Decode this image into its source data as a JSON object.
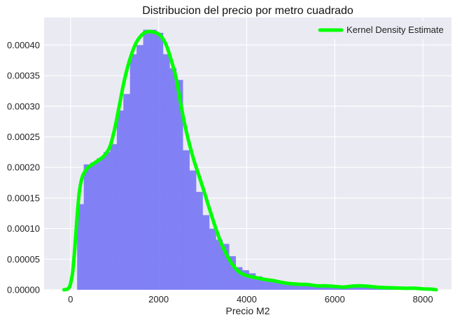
{
  "chart_data": {
    "type": "histogram",
    "title": "Distribucion del precio por metro cuadrado",
    "xlabel": "Precio M2",
    "ylabel": "",
    "xlim": [
      -600,
      8650
    ],
    "ylim": [
      0,
      0.000445
    ],
    "x_ticks": [
      0,
      2000,
      4000,
      6000,
      8000
    ],
    "x_tick_labels": [
      "0",
      "2000",
      "4000",
      "6000",
      "8000"
    ],
    "y_ticks": [
      0,
      5e-05,
      0.0001,
      0.00015,
      0.0002,
      0.00025,
      0.0003,
      0.00035,
      0.0004
    ],
    "y_tick_labels": [
      "0.00000",
      "0.00005",
      "0.00010",
      "0.00015",
      "0.00020",
      "0.00025",
      "0.00030",
      "0.00035",
      "0.00040"
    ],
    "grid": true,
    "legend_position": "top-right",
    "histogram": {
      "color": "#7b7bf4",
      "bin_edges": [
        150,
        300,
        450,
        600,
        750,
        900,
        1050,
        1200,
        1350,
        1500,
        1650,
        1800,
        1950,
        2100,
        2250,
        2400,
        2550,
        2700,
        2850,
        3000,
        3150,
        3300,
        3450,
        3600,
        3750,
        3900,
        4050,
        4200,
        4350,
        4500,
        4650,
        4800,
        4950,
        5100,
        5250,
        5400,
        5550,
        5700,
        5850,
        6000,
        6150,
        6300,
        6450,
        6600,
        6750,
        6900,
        7050,
        7200,
        7350,
        7500,
        7650,
        7800,
        7950,
        8100,
        8250
      ],
      "densities": [
        0.00014,
        0.000205,
        0.000208,
        0.000215,
        0.000225,
        0.000238,
        0.000293,
        0.00032,
        0.000385,
        0.0004,
        0.000425,
        0.000425,
        0.00042,
        0.000385,
        0.000362,
        0.000343,
        0.000228,
        0.000195,
        0.00016,
        0.000122,
        0.0001,
        8.2e-05,
        7.5e-05,
        5.5e-05,
        3.7e-05,
        3.2e-05,
        2.7e-05,
        2.2e-05,
        1.9e-05,
        1.6e-05,
        1.4e-05,
        1.2e-05,
        1.1e-05,
        1e-05,
        9e-06,
        8e-06,
        7e-06,
        6.5e-06,
        6e-06,
        5.5e-06,
        5e-06,
        4.5e-06,
        4e-06,
        4e-06,
        3.5e-06,
        3e-06,
        3e-06,
        2.5e-06,
        2.5e-06,
        2e-06,
        2e-06,
        1.5e-06,
        1.2e-06,
        1e-06
      ]
    },
    "series": [
      {
        "name": "Kernel Density Estimate",
        "color": "#00ff00",
        "x": [
          -150,
          -50,
          0,
          50,
          100,
          150,
          200,
          250,
          300,
          400,
          500,
          600,
          700,
          800,
          900,
          1000,
          1100,
          1200,
          1300,
          1400,
          1500,
          1600,
          1700,
          1800,
          1900,
          2000,
          2100,
          2200,
          2300,
          2400,
          2500,
          2600,
          2700,
          2800,
          2900,
          3000,
          3100,
          3200,
          3300,
          3400,
          3500,
          3600,
          3700,
          3800,
          3900,
          4000,
          4200,
          4400,
          4600,
          4800,
          5000,
          5200,
          5400,
          5600,
          5800,
          6000,
          6200,
          6400,
          6600,
          6800,
          7000,
          7200,
          7400,
          7600,
          7800,
          8000,
          8200,
          8300
        ],
        "y": [
          0,
          2e-06,
          1e-05,
          3e-05,
          7e-05,
          0.00012,
          0.00016,
          0.00018,
          0.00019,
          0.0002,
          0.000205,
          0.00021,
          0.000215,
          0.000222,
          0.000235,
          0.000262,
          0.000298,
          0.000335,
          0.000365,
          0.000388,
          0.000405,
          0.000415,
          0.000421,
          0.000422,
          0.000421,
          0.000418,
          0.00041,
          0.000395,
          0.000372,
          0.000345,
          0.000305,
          0.000268,
          0.000238,
          0.000212,
          0.00019,
          0.000168,
          0.000145,
          0.000122,
          0.0001,
          8e-05,
          6.4e-05,
          5e-05,
          3.9e-05,
          3.1e-05,
          2.6e-05,
          2.3e-05,
          2e-05,
          1.7e-05,
          1.5e-05,
          1.2e-05,
          1e-05,
          9e-06,
          8.5e-06,
          6.5e-06,
          6.5e-06,
          5.5e-06,
          4.5e-06,
          6e-06,
          6.5e-06,
          5.5e-06,
          4e-06,
          3.5e-06,
          3e-06,
          2.5e-06,
          2.5e-06,
          1.5e-06,
          1e-06,
          0
        ]
      }
    ]
  }
}
